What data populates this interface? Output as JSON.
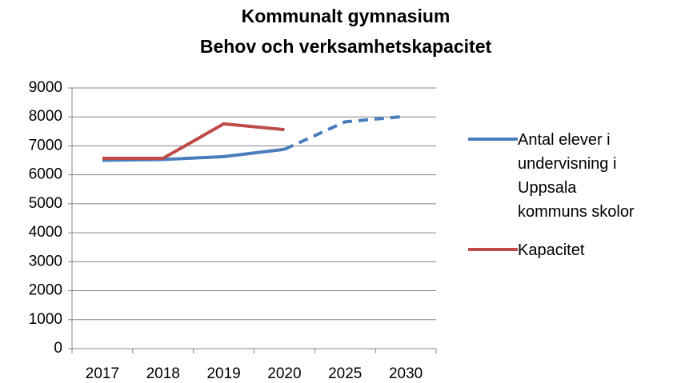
{
  "chart_data": {
    "type": "line",
    "title": [
      "Kommunalt gymnasium",
      "Behov och verksamhetskapacitet"
    ],
    "categories": [
      "2017",
      "2018",
      "2019",
      "2020",
      "2025",
      "2030"
    ],
    "series": [
      {
        "name": "Antal elever i undervisning i Uppsala kommuns skolor",
        "color": "#4a7ebb",
        "values": [
          6500,
          6530,
          6630,
          6880,
          7830,
          8020
        ],
        "dashed_from": 3
      },
      {
        "name": "Kapacitet",
        "color": "#be4b48",
        "values": [
          6570,
          6570,
          7760,
          7560,
          null,
          null
        ]
      }
    ],
    "ylim": [
      0,
      9000
    ],
    "yticks": [
      0,
      1000,
      2000,
      3000,
      4000,
      5000,
      6000,
      7000,
      8000,
      9000
    ],
    "grid": true,
    "legend": "right"
  }
}
